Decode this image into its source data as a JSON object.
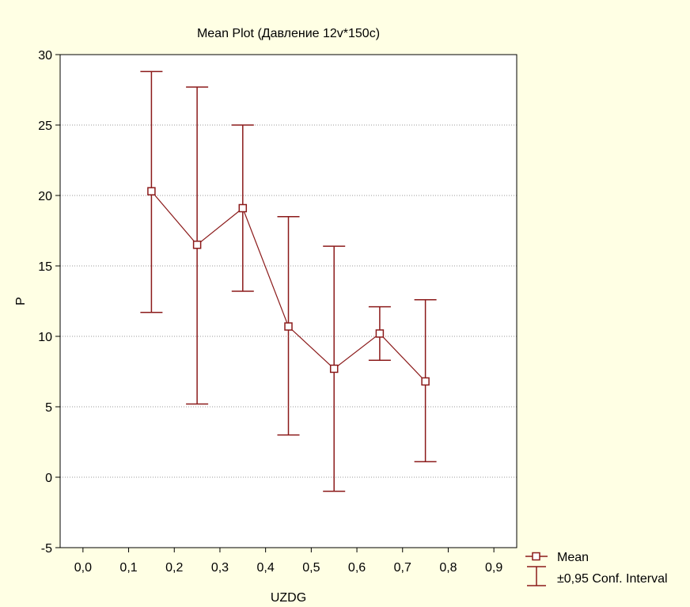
{
  "chart_data": {
    "type": "line",
    "title": "Mean Plot (Давление 12v*150c)",
    "xlabel": "UZDG",
    "ylabel": "P",
    "xlim": [
      -0.05,
      0.95
    ],
    "ylim": [
      -5,
      30
    ],
    "x_ticks": [
      0.0,
      0.1,
      0.2,
      0.3,
      0.4,
      0.5,
      0.6,
      0.7,
      0.8,
      0.9
    ],
    "x_tick_labels": [
      "0,0",
      "0,1",
      "0,2",
      "0,3",
      "0,4",
      "0,5",
      "0,6",
      "0,7",
      "0,8",
      "0,9"
    ],
    "y_ticks": [
      -5,
      0,
      5,
      10,
      15,
      20,
      25,
      30
    ],
    "y_tick_labels": [
      "-5",
      "0",
      "5",
      "10",
      "15",
      "20",
      "25",
      "30"
    ],
    "grid": "horizontal dotted",
    "legend_position": "bottom-right, outside plot",
    "series": [
      {
        "name": "Mean",
        "color": "#8b1a1a",
        "x": [
          0.15,
          0.25,
          0.35,
          0.45,
          0.55,
          0.65,
          0.75
        ],
        "values": [
          20.3,
          16.5,
          19.1,
          10.7,
          7.7,
          10.2,
          6.8
        ]
      },
      {
        "name": "±0,95 Conf. Interval",
        "color": "#8b1a1a",
        "x": [
          0.15,
          0.25,
          0.35,
          0.45,
          0.55,
          0.65,
          0.75
        ],
        "lower": [
          11.7,
          5.2,
          13.2,
          3.0,
          -1.0,
          8.3,
          1.1
        ],
        "upper": [
          28.8,
          27.7,
          25.0,
          18.5,
          16.4,
          12.1,
          12.6
        ]
      }
    ]
  }
}
